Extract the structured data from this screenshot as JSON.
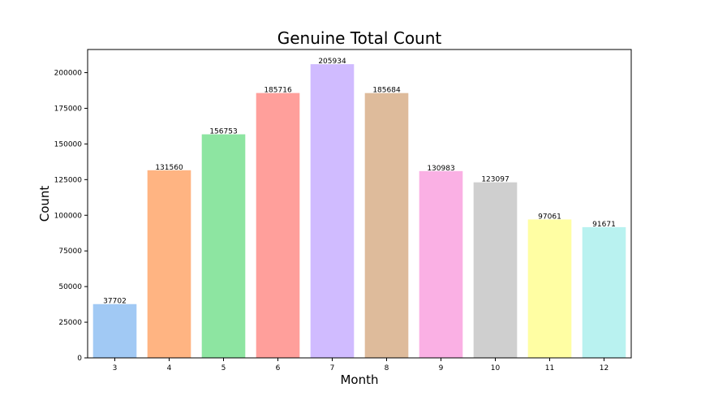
{
  "chart_data": {
    "type": "bar",
    "title": "Genuine Total Count",
    "xlabel": "Month",
    "ylabel": "Count",
    "categories": [
      "3",
      "4",
      "5",
      "6",
      "7",
      "8",
      "9",
      "10",
      "11",
      "12"
    ],
    "values": [
      37702,
      131560,
      156753,
      185716,
      205934,
      185684,
      130983,
      123097,
      97061,
      91671
    ],
    "data_labels": [
      "37702",
      "131560",
      "156753",
      "185716",
      "205934",
      "185684",
      "130983",
      "123097",
      "97061",
      "91671"
    ],
    "colors": [
      "#a1c9f4",
      "#ffb482",
      "#8de5a1",
      "#ff9f9b",
      "#d0bbff",
      "#debb9b",
      "#fab0e4",
      "#cfcfcf",
      "#fffea3",
      "#b9f2f0"
    ],
    "ylim": [
      0,
      216230
    ],
    "yticks": [
      0,
      25000,
      50000,
      75000,
      100000,
      125000,
      150000,
      175000,
      200000
    ],
    "ytick_labels": [
      "0",
      "25000",
      "50000",
      "75000",
      "100000",
      "125000",
      "150000",
      "175000",
      "200000"
    ],
    "grid": false,
    "legend": "none"
  }
}
